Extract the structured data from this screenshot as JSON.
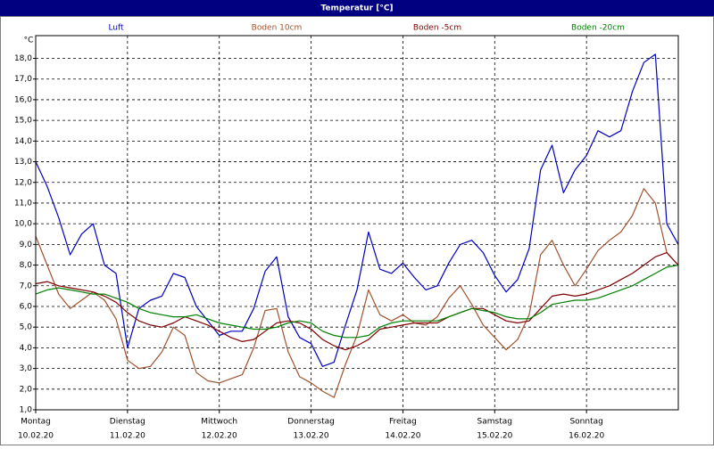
{
  "chart_data": {
    "type": "line",
    "title": "Temperatur [°C]",
    "y_label": "°C",
    "x": [
      0,
      0.125,
      0.25,
      0.375,
      0.5,
      0.625,
      0.75,
      0.875,
      1,
      1.125,
      1.25,
      1.375,
      1.5,
      1.625,
      1.75,
      1.875,
      2,
      2.125,
      2.25,
      2.375,
      2.5,
      2.625,
      2.75,
      2.875,
      3,
      3.125,
      3.25,
      3.375,
      3.5,
      3.625,
      3.75,
      3.875,
      4,
      4.125,
      4.25,
      4.375,
      4.5,
      4.625,
      4.75,
      4.875,
      5,
      5.125,
      5.25,
      5.375,
      5.5,
      5.625,
      5.75,
      5.875,
      6,
      6.125,
      6.25,
      6.375,
      6.5,
      6.625,
      6.75,
      6.875,
      7
    ],
    "series": [
      {
        "name": "Luft",
        "color": "#0000c0",
        "values": [
          13.0,
          11.8,
          10.3,
          8.5,
          9.5,
          10.0,
          8.0,
          7.6,
          4.0,
          5.9,
          6.3,
          6.5,
          7.6,
          7.4,
          6.0,
          5.3,
          4.6,
          4.8,
          4.8,
          5.9,
          7.7,
          8.4,
          5.5,
          4.5,
          4.2,
          3.1,
          3.3,
          5.1,
          6.8,
          9.6,
          7.8,
          7.6,
          8.1,
          7.4,
          6.8,
          7.0,
          8.1,
          9.0,
          9.2,
          8.6,
          7.5,
          6.7,
          7.3,
          8.8,
          12.6,
          13.8,
          11.5,
          12.6,
          13.3,
          14.5,
          14.2,
          14.5,
          16.4,
          17.8,
          18.2,
          10.0,
          9.0
        ]
      },
      {
        "name": "Boden 10cm",
        "color": "#a0522d",
        "values": [
          9.4,
          8.0,
          6.6,
          5.9,
          6.3,
          6.7,
          6.3,
          5.4,
          3.4,
          3.0,
          3.1,
          3.8,
          5.0,
          4.6,
          2.8,
          2.4,
          2.3,
          2.5,
          2.7,
          4.0,
          5.8,
          5.9,
          3.8,
          2.6,
          2.3,
          1.9,
          1.6,
          3.2,
          4.6,
          6.8,
          5.6,
          5.3,
          5.6,
          5.2,
          5.1,
          5.5,
          6.4,
          7.0,
          6.1,
          5.1,
          4.5,
          3.9,
          4.4,
          5.6,
          8.5,
          9.2,
          8.0,
          7.0,
          7.8,
          8.7,
          9.2,
          9.6,
          10.4,
          11.7,
          11.0,
          8.6,
          8.0
        ]
      },
      {
        "name": "Boden -5cm",
        "color": "#800000",
        "values": [
          7.1,
          7.2,
          7.0,
          6.9,
          6.8,
          6.7,
          6.5,
          6.2,
          5.7,
          5.3,
          5.1,
          5.0,
          5.2,
          5.5,
          5.3,
          5.1,
          4.8,
          4.5,
          4.3,
          4.4,
          4.8,
          5.2,
          5.3,
          5.2,
          4.9,
          4.4,
          4.1,
          3.9,
          4.1,
          4.4,
          4.9,
          5.0,
          5.1,
          5.2,
          5.2,
          5.2,
          5.5,
          5.7,
          5.9,
          5.9,
          5.6,
          5.3,
          5.2,
          5.3,
          5.9,
          6.5,
          6.6,
          6.5,
          6.6,
          6.8,
          7.0,
          7.3,
          7.6,
          8.0,
          8.4,
          8.6,
          8.0
        ]
      },
      {
        "name": "Boden -20cm",
        "color": "#008000",
        "values": [
          6.6,
          6.8,
          6.9,
          6.8,
          6.7,
          6.6,
          6.6,
          6.4,
          6.2,
          5.9,
          5.7,
          5.6,
          5.5,
          5.5,
          5.6,
          5.4,
          5.2,
          5.1,
          5.0,
          4.9,
          4.9,
          5.0,
          5.2,
          5.3,
          5.2,
          4.8,
          4.6,
          4.5,
          4.5,
          4.6,
          5.0,
          5.2,
          5.3,
          5.3,
          5.3,
          5.3,
          5.5,
          5.7,
          5.9,
          5.8,
          5.7,
          5.5,
          5.4,
          5.4,
          5.7,
          6.1,
          6.2,
          6.3,
          6.3,
          6.4,
          6.6,
          6.8,
          7.0,
          7.3,
          7.6,
          7.9,
          8.0
        ]
      }
    ],
    "xlim": [
      0,
      7
    ],
    "xticks": [
      {
        "value": 0,
        "label": "Montag",
        "date": "10.02.20"
      },
      {
        "value": 1,
        "label": "Dienstag",
        "date": "11.02.20"
      },
      {
        "value": 2,
        "label": "Mittwoch",
        "date": "12.02.20"
      },
      {
        "value": 3,
        "label": "Donnerstag",
        "date": "13.02.20"
      },
      {
        "value": 4,
        "label": "Freitag",
        "date": "14.02.20"
      },
      {
        "value": 5,
        "label": "Samstag",
        "date": "15.02.20"
      },
      {
        "value": 6,
        "label": "Sonntag",
        "date": "16.02.20"
      }
    ],
    "ylim": [
      1,
      19.1
    ],
    "yticks": [
      {
        "value": 1,
        "label": "1,0"
      },
      {
        "value": 2,
        "label": "2,0"
      },
      {
        "value": 3,
        "label": "3,0"
      },
      {
        "value": 4,
        "label": "4,0"
      },
      {
        "value": 5,
        "label": "5,0"
      },
      {
        "value": 6,
        "label": "6,0"
      },
      {
        "value": 7,
        "label": "7,0"
      },
      {
        "value": 8,
        "label": "8,0"
      },
      {
        "value": 9,
        "label": "9,0"
      },
      {
        "value": 10,
        "label": "10,0"
      },
      {
        "value": 11,
        "label": "11,0"
      },
      {
        "value": 12,
        "label": "12,0"
      },
      {
        "value": 13,
        "label": "13,0"
      },
      {
        "value": 14,
        "label": "14,0"
      },
      {
        "value": 15,
        "label": "15,0"
      },
      {
        "value": 16,
        "label": "16,0"
      },
      {
        "value": 17,
        "label": "17,0"
      },
      {
        "value": 18,
        "label": "18,0"
      }
    ],
    "grid": true,
    "legend": "top"
  }
}
